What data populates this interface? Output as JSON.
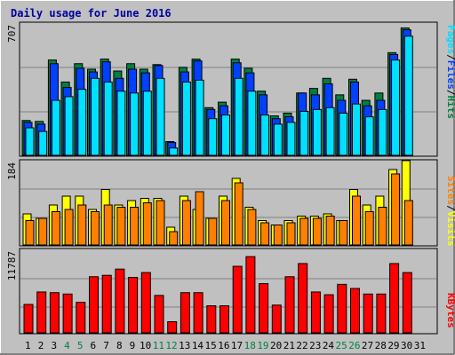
{
  "chart_data": {
    "type": "bar",
    "title": "Daily usage for June 2016",
    "colors": {
      "background": "#C0C0C0",
      "title": "#0000A0",
      "hits": "#008040",
      "files": "#0040FF",
      "pages": "#00E0FF",
      "visits": "#FFFF00",
      "sites": "#FF8000",
      "kbytes": "#FF0000",
      "weekend_label": "#008040",
      "weekday_label": "#000000",
      "slash": "#000000"
    },
    "days": [
      "1",
      "2",
      "3",
      "4",
      "5",
      "6",
      "7",
      "8",
      "9",
      "10",
      "11",
      "12",
      "13",
      "14",
      "15",
      "16",
      "17",
      "18",
      "19",
      "20",
      "21",
      "22",
      "23",
      "24",
      "25",
      "26",
      "27",
      "28",
      "29",
      "30",
      "31"
    ],
    "weekend_days": [
      "4",
      "5",
      "11",
      "12",
      "18",
      "19",
      "25",
      "26"
    ],
    "panels": {
      "hits_files_pages": {
        "max_label": "707",
        "max": 707,
        "legend": {
          "pages": "Pages",
          "sep1": "/",
          "files": "Files",
          "sep2": "/",
          "hits": "Hits"
        },
        "series": [
          {
            "name": "Hits",
            "values": [
              190,
              185,
              520,
              400,
              500,
              470,
              525,
              460,
              500,
              470,
              495,
              75,
              480,
              525,
              260,
              290,
              525,
              475,
              350,
              215,
              230,
              340,
              365,
              420,
              330,
              415,
              300,
              340,
              560,
              695,
              null
            ]
          },
          {
            "name": "Files",
            "values": [
              180,
              170,
              500,
              370,
              475,
              455,
              510,
              420,
              470,
              450,
              490,
              70,
              455,
              515,
              250,
              270,
              505,
              450,
              330,
              200,
              210,
              340,
              330,
              390,
              300,
              400,
              270,
              300,
              550,
              685,
              null
            ]
          },
          {
            "name": "Pages",
            "values": [
              150,
              130,
              300,
              320,
              360,
              420,
              400,
              350,
              340,
              350,
              420,
              40,
              400,
              410,
              200,
              220,
              420,
              350,
              220,
              170,
              180,
              240,
              250,
              260,
              230,
              280,
              210,
              250,
              520,
              650,
              null
            ]
          }
        ]
      },
      "visits_sites": {
        "max_label": "184",
        "max": 184,
        "legend": {
          "sites": "Sites",
          "sep1": "/",
          "visits": "Visits"
        },
        "series": [
          {
            "name": "Visits",
            "values": [
              70,
              60,
              90,
              110,
              110,
              80,
              125,
              90,
              100,
              105,
              105,
              40,
              110,
              80,
              60,
              110,
              150,
              85,
              55,
              45,
              55,
              65,
              65,
              70,
              55,
              125,
              90,
              110,
              170,
              190,
              null
            ]
          },
          {
            "name": "Sites",
            "values": [
              55,
              60,
              75,
              80,
              90,
              75,
              90,
              85,
              85,
              95,
              100,
              30,
              100,
              120,
              60,
              100,
              140,
              80,
              50,
              45,
              50,
              60,
              60,
              65,
              55,
              110,
              75,
              85,
              160,
              100,
              null
            ]
          }
        ]
      },
      "kbytes": {
        "max_label": "11787",
        "max": 11787,
        "legend": {
          "kbytes": "KBytes"
        },
        "series": [
          {
            "name": "KBytes",
            "values": [
              4100,
              5900,
              5800,
              5600,
              4400,
              8100,
              8300,
              9200,
              8000,
              8700,
              5400,
              1600,
              5800,
              5800,
              3900,
              3900,
              9600,
              11000,
              7100,
              4000,
              8100,
              10000,
              5900,
              5500,
              7000,
              6400,
              5600,
              5600,
              10000,
              8700,
              null
            ]
          }
        ]
      }
    }
  }
}
